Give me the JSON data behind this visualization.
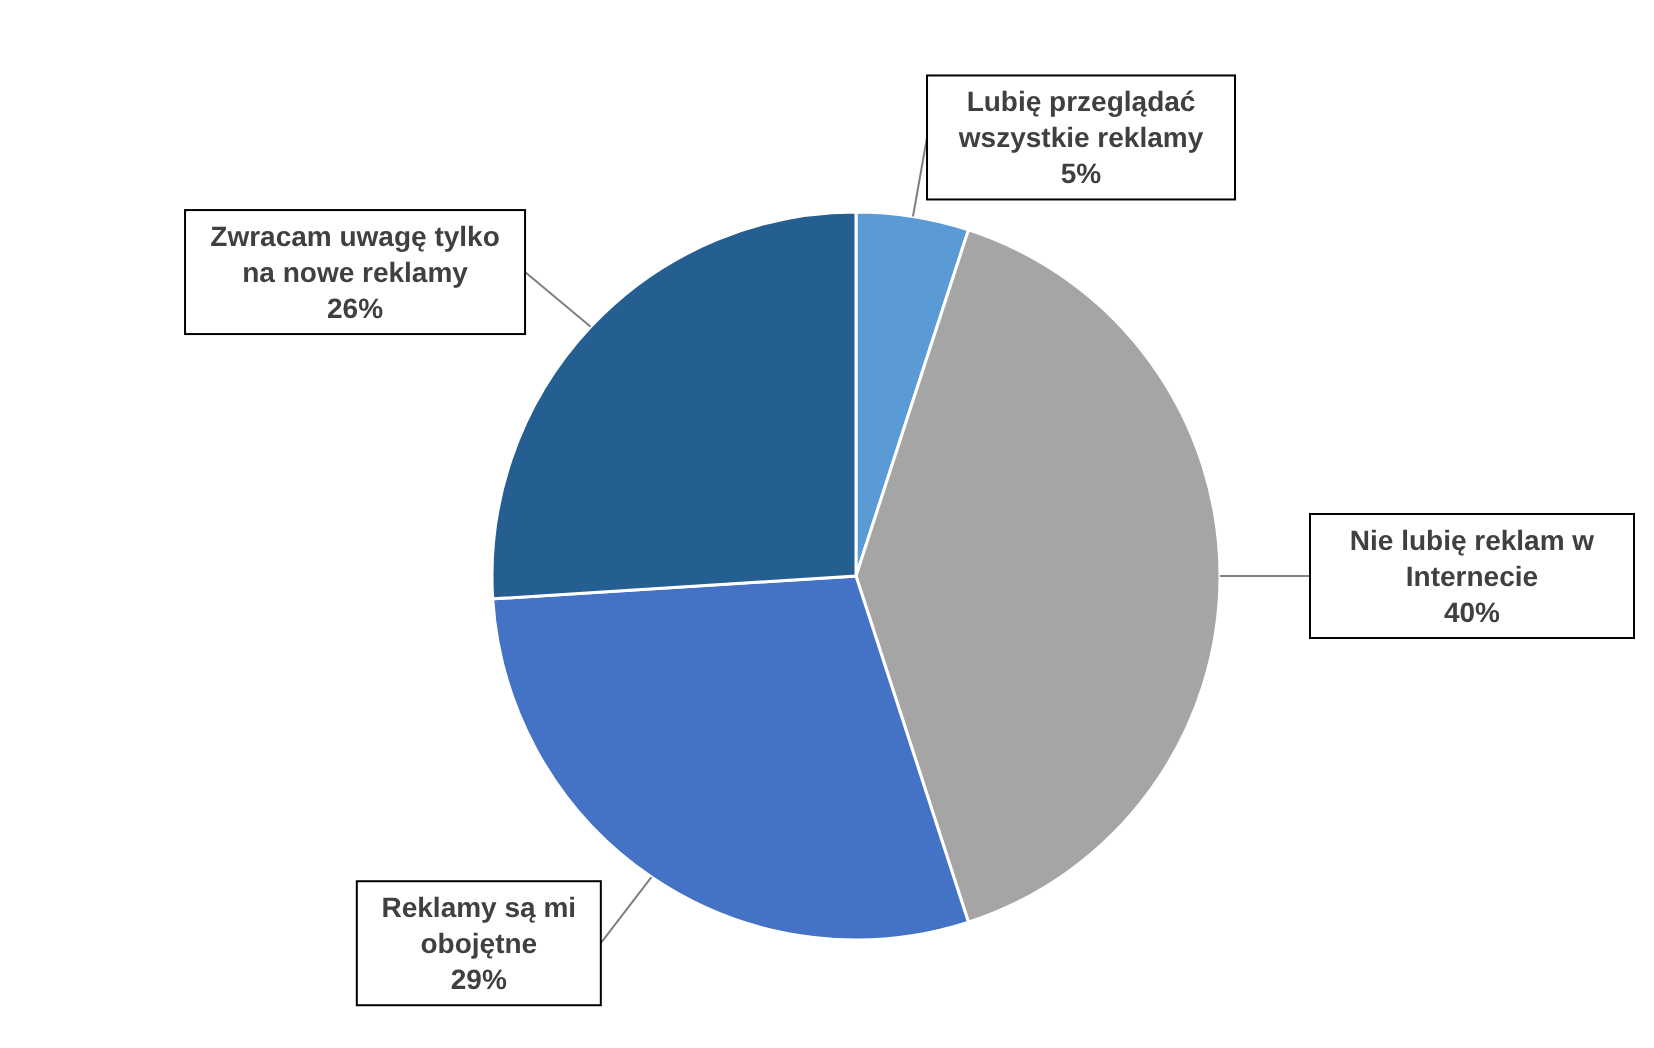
{
  "chart_data": {
    "type": "pie",
    "categories": [
      "Lubię przeglądać wszystkie reklamy",
      "Nie lubię reklam w Internecie",
      "Reklamy są mi obojętne",
      "Zwracam uwagę tylko na nowe reklamy"
    ],
    "values": [
      5,
      40,
      29,
      26
    ],
    "colors": [
      "#5b9bd5",
      "#a5a5a5",
      "#4472c4",
      "#255e91"
    ],
    "value_labels": [
      "5%",
      "40%",
      "29%",
      "26%"
    ]
  }
}
